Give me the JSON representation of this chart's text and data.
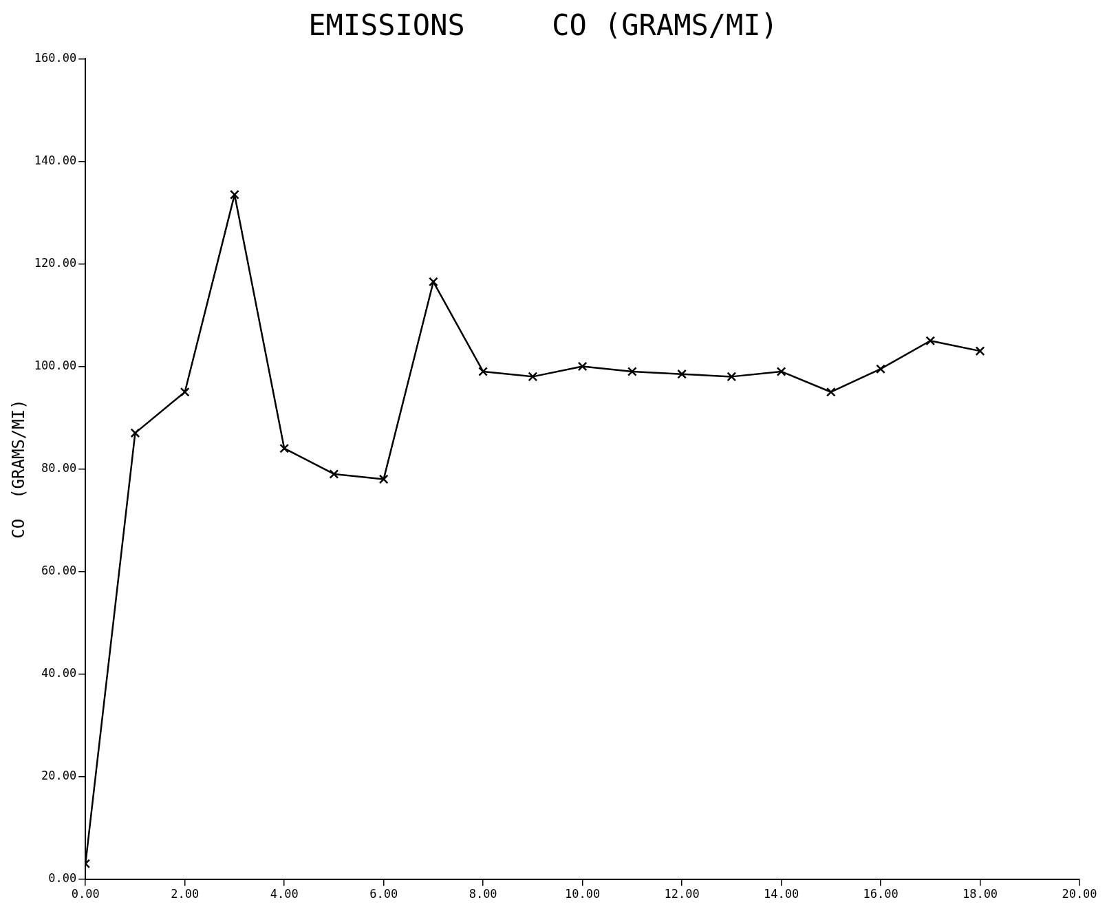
{
  "chart_data": {
    "type": "line",
    "title": "EMISSIONS     CO (GRAMS/MI)",
    "ylabel": "CO  (GRAMS/MI)",
    "x": [
      0,
      1,
      2,
      3,
      4,
      5,
      6,
      7,
      8,
      9,
      10,
      11,
      12,
      13,
      14,
      15,
      16,
      17,
      18
    ],
    "series": [
      {
        "color": "#000000",
        "values": [
          3,
          87,
          95,
          133.5,
          84,
          79,
          78,
          116.5,
          99,
          98,
          100,
          99,
          98.5,
          98,
          99,
          95,
          99.5,
          105,
          103
        ]
      }
    ],
    "xlim": [
      0,
      20
    ],
    "xticks": [
      {
        "value": 0,
        "label": "0.00"
      },
      {
        "value": 2,
        "label": "2.00"
      },
      {
        "value": 4,
        "label": "4.00"
      },
      {
        "value": 6,
        "label": "6.00"
      },
      {
        "value": 8,
        "label": "8.00"
      },
      {
        "value": 10,
        "label": "10.00"
      },
      {
        "value": 12,
        "label": "12.00"
      },
      {
        "value": 14,
        "label": "14.00"
      },
      {
        "value": 16,
        "label": "16.00"
      },
      {
        "value": 18,
        "label": "18.00"
      },
      {
        "value": 20,
        "label": "20.00"
      }
    ],
    "ylim": [
      0,
      160
    ],
    "yticks": [
      {
        "value": 0,
        "label": "0.00"
      },
      {
        "value": 20,
        "label": "20.00"
      },
      {
        "value": 40,
        "label": "40.00"
      },
      {
        "value": 60,
        "label": "60.00"
      },
      {
        "value": 80,
        "label": "80.00"
      },
      {
        "value": 100,
        "label": "100.00"
      },
      {
        "value": 120,
        "label": "120.00"
      },
      {
        "value": 140,
        "label": "140.00"
      },
      {
        "value": 160,
        "label": "160.00"
      }
    ],
    "grid": false,
    "legend": false,
    "marker": "cross",
    "line_style": "solid"
  }
}
